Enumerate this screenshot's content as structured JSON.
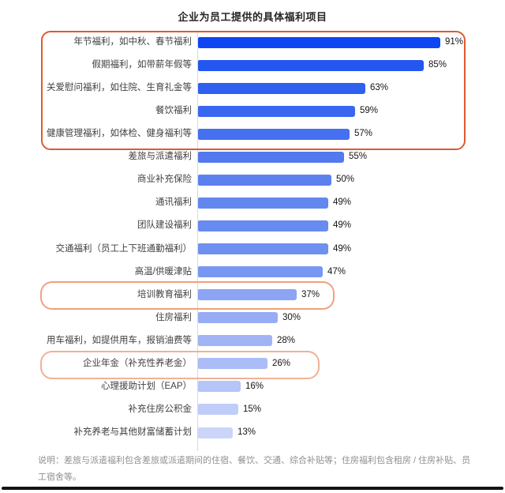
{
  "title": "企业为员工提供的具体福利项目",
  "chart_data": {
    "type": "bar",
    "orientation": "horizontal",
    "title": "企业为员工提供的具体福利项目",
    "xlabel": "",
    "ylabel": "",
    "xlim": [
      0,
      100
    ],
    "grid": false,
    "categories": [
      "年节福利，如中秋、春节福利",
      "假期福利，如带薪年假等",
      "关爱慰问福利，如住院、生育礼金等",
      "餐饮福利",
      "健康管理福利，如体检、健身福利等",
      "差旅与派遣福利",
      "商业补充保险",
      "通讯福利",
      "团队建设福利",
      "交通福利（员工上下班通勤福利）",
      "高温/供暖津贴",
      "培训教育福利",
      "住房福利",
      "用车福利，如提供用车，报销油费等",
      "企业年金（补充性养老金）",
      "心理援助计划（EAP）",
      "补充住房公积金",
      "补充养老与其他财富储蓄计划"
    ],
    "values": [
      91,
      85,
      63,
      59,
      57,
      55,
      50,
      49,
      49,
      49,
      47,
      37,
      30,
      28,
      26,
      16,
      15,
      13
    ],
    "value_labels": [
      "91%",
      "85%",
      "63%",
      "59%",
      "57%",
      "55%",
      "50%",
      "49%",
      "49%",
      "49%",
      "47%",
      "37%",
      "30%",
      "28%",
      "26%",
      "16%",
      "15%",
      "13%"
    ],
    "bar_colors": [
      "#0d46f2",
      "#2456f0",
      "#2f60ef",
      "#3a67ef",
      "#4570ef",
      "#5279ee",
      "#5c81ef",
      "#6287ef",
      "#688bf0",
      "#6e90f1",
      "#7897f2",
      "#8ba4f4",
      "#97acf4",
      "#a1b4f5",
      "#abbcf6",
      "#b6c5f7",
      "#c0cdf8",
      "#cbd5f9"
    ],
    "annotations": [
      {
        "name": "top5-highlight-box",
        "rows": "1-5",
        "style": "orange rounded outline"
      },
      {
        "name": "training-highlight-box",
        "rows": "12",
        "style": "light salmon rounded outline"
      },
      {
        "name": "annuity-highlight-box",
        "rows": "15",
        "style": "light salmon rounded outline"
      }
    ]
  },
  "colors": {
    "highlight_primary": "#dd5a31",
    "highlight_secondary": "#f0a180",
    "highlight_tertiary": "#f2b098",
    "axis_line": "#d9d9d9"
  },
  "note": {
    "text": "说明：差旅与派遣福利包含差旅或派遣期间的住宿、餐饮、交通、综合补贴等；住房福利包含租房 / 住房补贴、员工宿舍等。"
  }
}
